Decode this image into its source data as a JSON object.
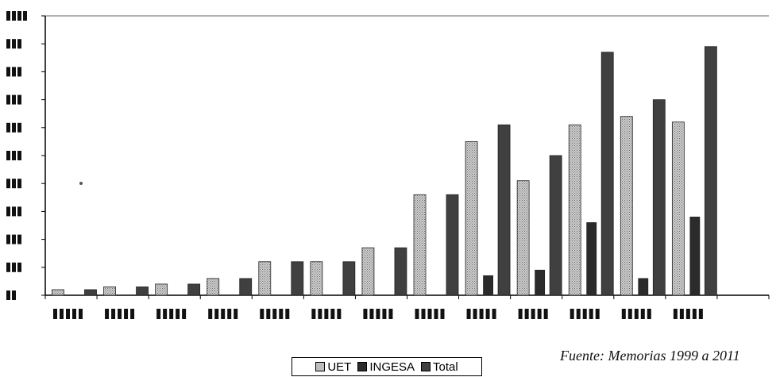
{
  "chart_data": {
    "type": "bar",
    "categories": [
      "",
      "",
      "",
      "",
      "",
      "",
      "",
      "",
      "",
      "",
      "",
      "",
      ""
    ],
    "series": [
      {
        "name": "UET",
        "values": [
          2,
          3,
          4,
          6,
          12,
          12,
          17,
          36,
          55,
          41,
          61,
          64,
          62
        ]
      },
      {
        "name": "INGESA",
        "values": [
          0,
          0,
          0,
          0,
          0,
          0,
          0,
          0,
          7,
          9,
          26,
          6,
          28
        ]
      },
      {
        "name": "Total",
        "values": [
          2,
          3,
          4,
          6,
          12,
          12,
          17,
          36,
          61,
          50,
          87,
          70,
          89
        ]
      }
    ],
    "ylim": [
      0,
      100
    ],
    "yticks": [
      0,
      10,
      20,
      30,
      40,
      50,
      60,
      70,
      80,
      90,
      100
    ],
    "grid": false,
    "legend_position": "bottom",
    "colors": {
      "UET": "#bdbdbd",
      "INGESA": "#2b2b2b",
      "Total": "#404040"
    }
  },
  "legend": {
    "items": [
      "UET",
      "INGESA",
      "Total"
    ]
  },
  "source": "Fuente: Memorias 1999 a 2011"
}
